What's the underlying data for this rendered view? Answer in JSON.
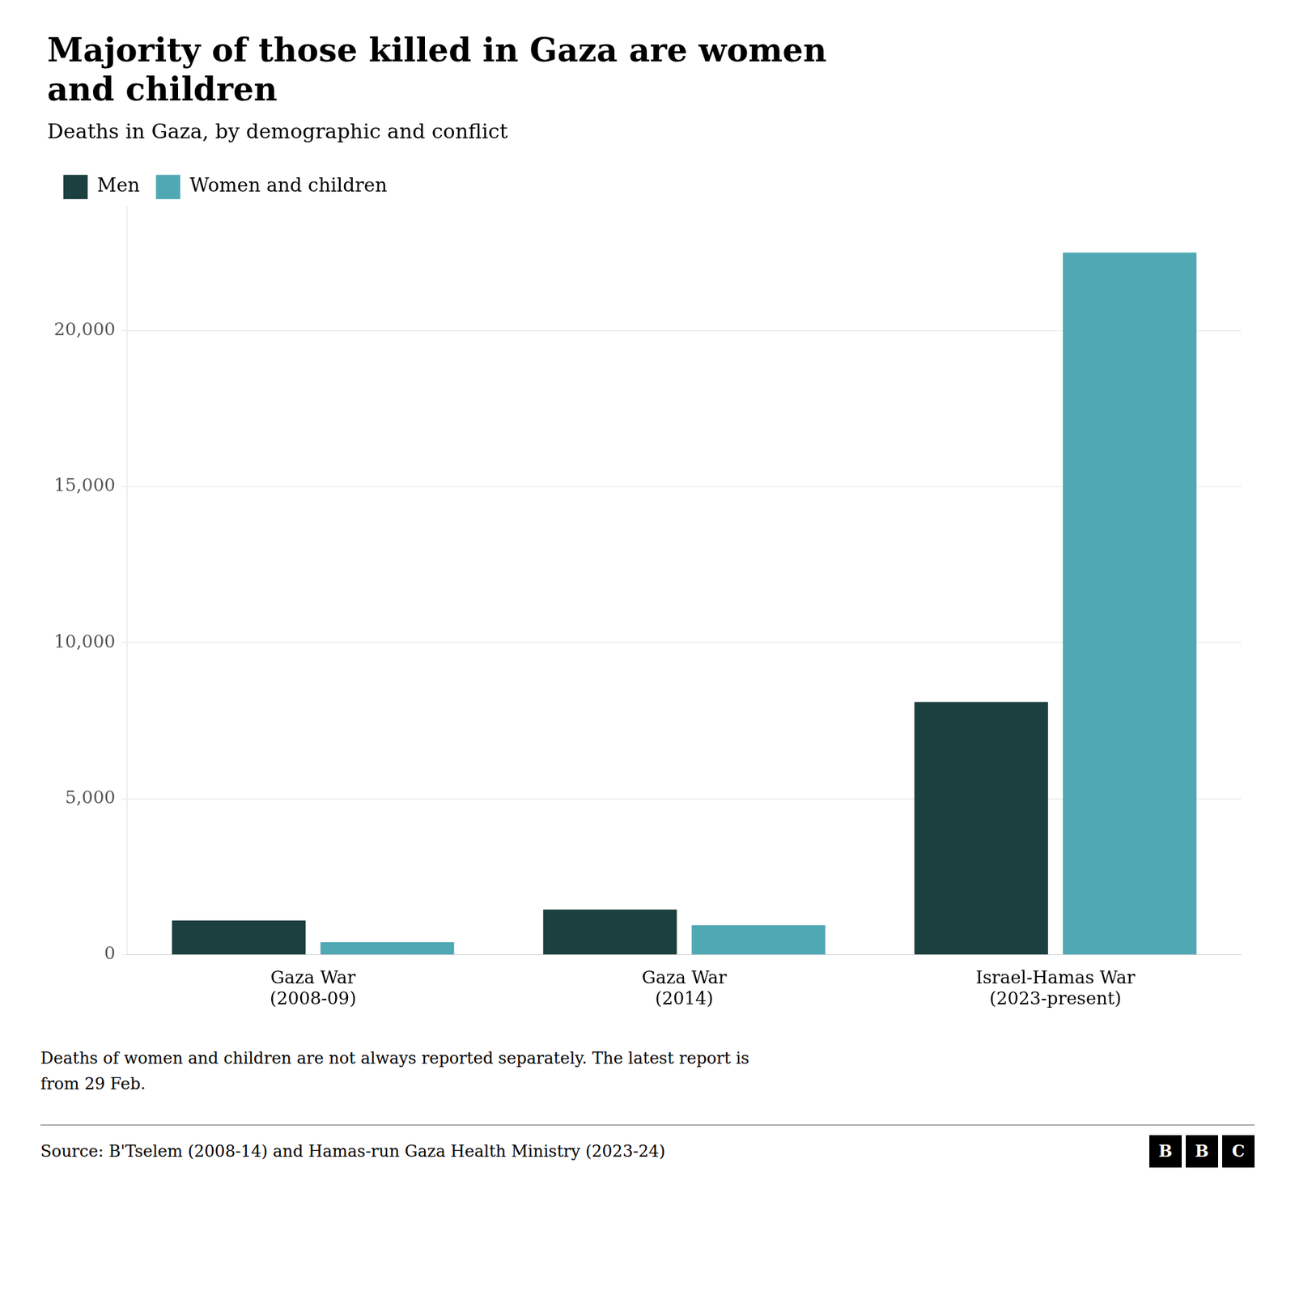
{
  "chart_data": {
    "type": "bar",
    "title": "Majority of those killed in Gaza are women\nand children",
    "subtitle": "Deaths in Gaza, by demographic and conflict",
    "categories": [
      "Gaza War\n(2008-09)",
      "Gaza War\n(2014)",
      "Israel-Hamas War\n(2023-present)"
    ],
    "series": [
      {
        "name": "Men",
        "color": "#1c3f3f",
        "values": [
          1100,
          1450,
          8100
        ]
      },
      {
        "name": "Women and children",
        "color": "#4fa8b4",
        "values": [
          400,
          950,
          22500
        ]
      }
    ],
    "ylim": [
      0,
      24000
    ],
    "yticks": [
      0,
      {
        "value": 5000,
        "label": "5,000"
      },
      {
        "value": 10000,
        "label": "10,000"
      },
      {
        "value": 15000,
        "label": "15,000"
      },
      {
        "value": 20000,
        "label": "20,000"
      }
    ],
    "grid": true,
    "legend": "upper left",
    "footnote": "Deaths of women and children are not always reported separately. The latest report is\nfrom 29 Feb.",
    "source": "Source: B'Tselem (2008-14) and Hamas-run Gaza Health Ministry (2023-24)",
    "logo": "BBC"
  }
}
